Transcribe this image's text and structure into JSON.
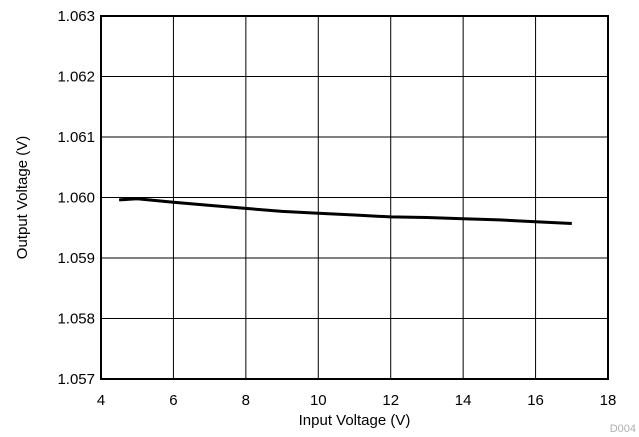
{
  "chart_data": {
    "type": "line",
    "title": "",
    "xlabel": "Input Voltage (V)",
    "ylabel": "Output Voltage (V)",
    "xlim": [
      4,
      18
    ],
    "ylim": [
      1.057,
      1.063
    ],
    "x_ticks": [
      "4",
      "6",
      "8",
      "10",
      "12",
      "14",
      "16",
      "18"
    ],
    "y_ticks": [
      "1.057",
      "1.058",
      "1.059",
      "1.060",
      "1.061",
      "1.062",
      "1.063"
    ],
    "grid": true,
    "legend": "none",
    "series": [
      {
        "color": "#000000",
        "points": [
          {
            "x": 4.5,
            "y": 1.05996
          },
          {
            "x": 5.0,
            "y": 1.05998
          },
          {
            "x": 6.0,
            "y": 1.05992
          },
          {
            "x": 7.0,
            "y": 1.05987
          },
          {
            "x": 8.0,
            "y": 1.05982
          },
          {
            "x": 9.0,
            "y": 1.05977
          },
          {
            "x": 10.0,
            "y": 1.05974
          },
          {
            "x": 11.0,
            "y": 1.05971
          },
          {
            "x": 12.0,
            "y": 1.05968
          },
          {
            "x": 13.0,
            "y": 1.05967
          },
          {
            "x": 14.0,
            "y": 1.05965
          },
          {
            "x": 15.0,
            "y": 1.05963
          },
          {
            "x": 16.0,
            "y": 1.0596
          },
          {
            "x": 17.0,
            "y": 1.05957
          }
        ]
      }
    ]
  },
  "figure_id": "D004"
}
